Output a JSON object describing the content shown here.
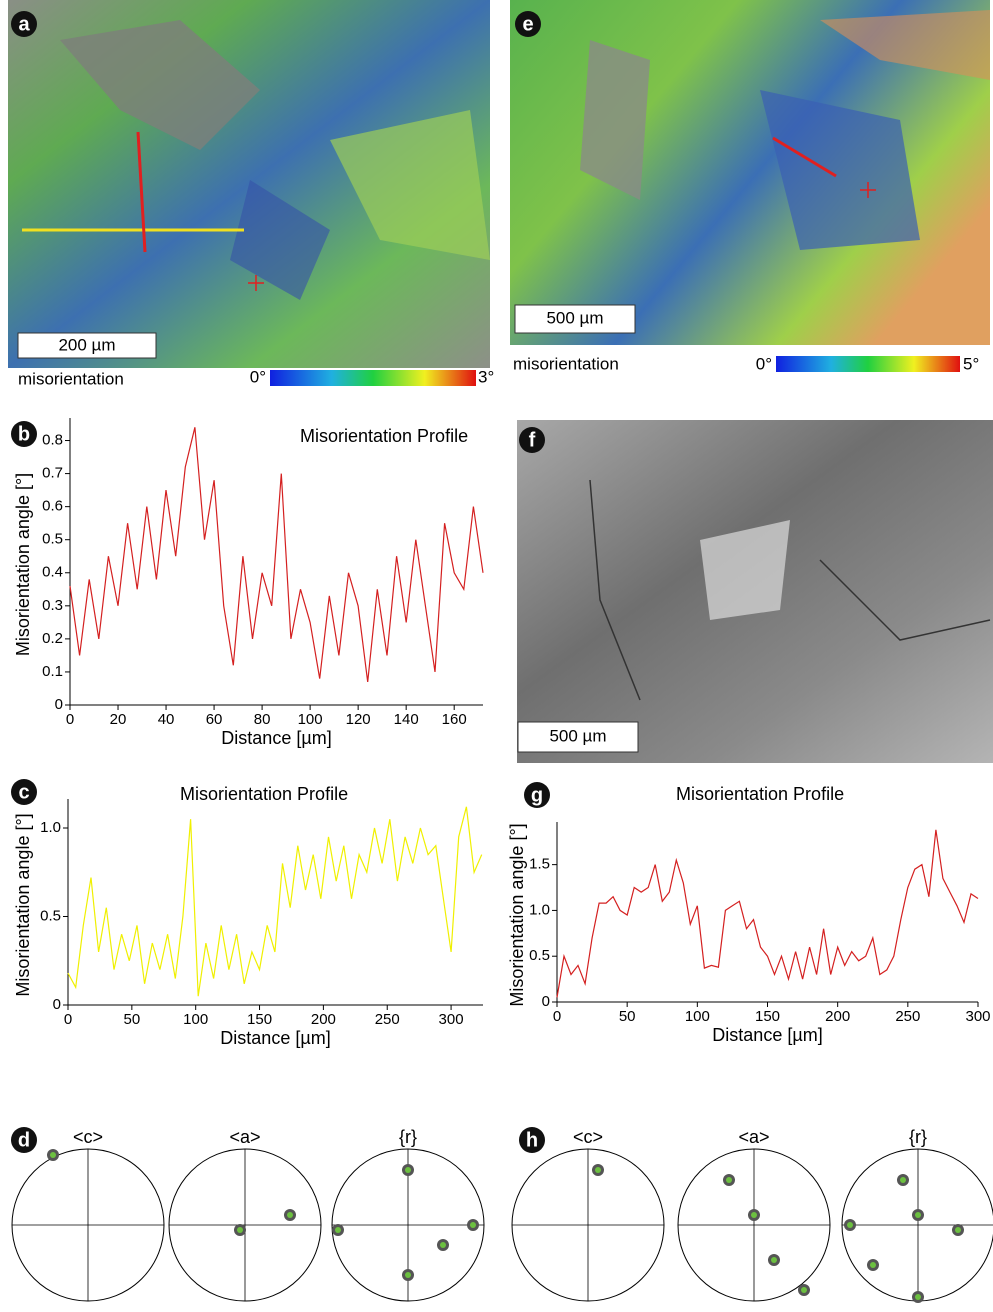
{
  "panels": {
    "a": {
      "label": "a",
      "scale_bar": "200 µm",
      "colorbar_label": "misorientation",
      "colorbar_min": "0°",
      "colorbar_max": "3°"
    },
    "e": {
      "label": "e",
      "scale_bar": "500 µm",
      "colorbar_label": "misorientation",
      "colorbar_min": "0°",
      "colorbar_max": "5°"
    },
    "f": {
      "label": "f",
      "scale_bar": "500 µm"
    }
  },
  "chart_data": [
    {
      "type": "line",
      "panel_label": "b",
      "title": "Misorientation Profile",
      "x_label": "Distance [µm]",
      "y_label": "Misorientation angle [°]",
      "x": [
        0,
        4,
        8,
        12,
        16,
        20,
        24,
        28,
        32,
        36,
        40,
        44,
        48,
        52,
        56,
        60,
        64,
        68,
        72,
        76,
        80,
        84,
        88,
        92,
        96,
        100,
        104,
        108,
        112,
        116,
        120,
        124,
        128,
        132,
        136,
        140,
        144,
        148,
        152,
        156,
        160,
        164,
        168,
        172
      ],
      "series": [
        {
          "color": "#d42020",
          "values": [
            0.36,
            0.15,
            0.38,
            0.2,
            0.45,
            0.3,
            0.55,
            0.35,
            0.6,
            0.38,
            0.65,
            0.45,
            0.72,
            0.84,
            0.5,
            0.68,
            0.3,
            0.12,
            0.45,
            0.2,
            0.4,
            0.3,
            0.7,
            0.2,
            0.35,
            0.25,
            0.08,
            0.33,
            0.15,
            0.4,
            0.3,
            0.07,
            0.35,
            0.15,
            0.45,
            0.25,
            0.5,
            0.3,
            0.1,
            0.55,
            0.4,
            0.35,
            0.6,
            0.4
          ]
        }
      ],
      "xlim": [
        0,
        172
      ],
      "ylim": [
        0,
        0.85
      ],
      "xticks": [
        0,
        20,
        40,
        60,
        80,
        100,
        120,
        140,
        160
      ],
      "yticks": [
        0,
        0.1,
        0.2,
        0.3,
        0.4,
        0.5,
        0.6,
        0.7,
        0.8
      ]
    },
    {
      "type": "line",
      "panel_label": "c",
      "title": "Misorientation Profile",
      "x_label": "Distance [µm]",
      "y_label": "Misorientation angle [°]",
      "x": [
        0,
        6,
        12,
        18,
        24,
        30,
        36,
        42,
        48,
        54,
        60,
        66,
        72,
        78,
        84,
        90,
        96,
        102,
        108,
        114,
        120,
        126,
        132,
        138,
        144,
        150,
        156,
        162,
        168,
        174,
        180,
        186,
        192,
        198,
        204,
        210,
        216,
        222,
        228,
        234,
        240,
        246,
        252,
        258,
        264,
        270,
        276,
        282,
        288,
        294,
        300,
        306,
        312,
        318,
        324
      ],
      "series": [
        {
          "color": "#f0f000",
          "values": [
            0.18,
            0.1,
            0.45,
            0.72,
            0.3,
            0.55,
            0.2,
            0.4,
            0.25,
            0.45,
            0.12,
            0.35,
            0.2,
            0.4,
            0.15,
            0.5,
            1.05,
            0.05,
            0.35,
            0.15,
            0.45,
            0.2,
            0.4,
            0.12,
            0.3,
            0.2,
            0.45,
            0.3,
            0.8,
            0.55,
            0.9,
            0.65,
            0.85,
            0.6,
            0.95,
            0.7,
            0.9,
            0.6,
            0.85,
            0.75,
            1.0,
            0.8,
            1.05,
            0.7,
            0.95,
            0.8,
            1.0,
            0.85,
            0.9,
            0.6,
            0.3,
            0.95,
            1.12,
            0.75,
            0.85
          ]
        }
      ],
      "xlim": [
        0,
        325
      ],
      "ylim": [
        0,
        1.13
      ],
      "xticks": [
        0,
        50,
        100,
        150,
        200,
        250,
        300
      ],
      "yticks": [
        0,
        0.5,
        {
          "value": 1,
          "label": "1.0"
        }
      ]
    },
    {
      "type": "line",
      "panel_label": "g",
      "title": "Misorientation Profile",
      "x_label": "Distance [µm]",
      "y_label": "Misorientation angle [°]",
      "x": [
        0,
        5,
        10,
        15,
        20,
        25,
        30,
        35,
        40,
        45,
        50,
        55,
        60,
        65,
        70,
        75,
        80,
        85,
        90,
        95,
        100,
        105,
        110,
        115,
        120,
        125,
        130,
        135,
        140,
        145,
        150,
        155,
        160,
        165,
        170,
        175,
        180,
        185,
        190,
        195,
        200,
        205,
        210,
        215,
        220,
        225,
        230,
        235,
        240,
        245,
        250,
        255,
        260,
        265,
        270,
        275,
        280,
        285,
        290,
        295,
        300
      ],
      "series": [
        {
          "color": "#d42020",
          "values": [
            0.05,
            0.5,
            0.3,
            0.4,
            0.2,
            0.7,
            1.08,
            1.08,
            1.15,
            1.0,
            0.95,
            1.25,
            1.2,
            1.25,
            1.5,
            1.1,
            1.2,
            1.55,
            1.3,
            0.85,
            1.05,
            0.37,
            0.4,
            0.38,
            1.0,
            1.05,
            1.1,
            0.8,
            0.9,
            0.6,
            0.5,
            0.3,
            0.5,
            0.25,
            0.55,
            0.25,
            0.6,
            0.3,
            0.8,
            0.3,
            0.6,
            0.4,
            0.55,
            0.45,
            0.5,
            0.7,
            0.3,
            0.35,
            0.5,
            0.9,
            1.25,
            1.45,
            1.5,
            1.15,
            1.88,
            1.35,
            1.2,
            1.05,
            0.87,
            1.18,
            1.13
          ]
        }
      ],
      "xlim": [
        0,
        300
      ],
      "ylim": [
        0,
        1.9
      ],
      "xticks": [
        0,
        50,
        100,
        150,
        200,
        250,
        300
      ],
      "yticks": [
        0,
        0.5,
        {
          "value": 1,
          "label": "1.0"
        },
        1.5
      ]
    }
  ],
  "pole_figures": [
    {
      "panel_label": "d",
      "titles": [
        "<c>",
        "<a>",
        "{r}"
      ]
    },
    {
      "panel_label": "h",
      "titles": [
        "<c>",
        "<a>",
        "{r}"
      ]
    }
  ]
}
